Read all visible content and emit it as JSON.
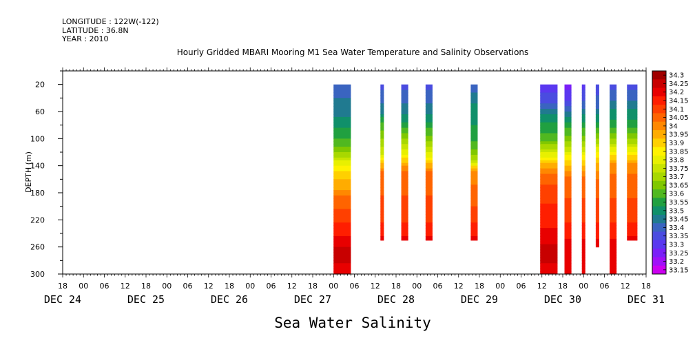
{
  "meta": {
    "longitude": "LONGITUDE : 122W(-122)",
    "latitude": "LATITUDE : 36.8N",
    "year": "YEAR : 2010"
  },
  "chart_data": {
    "type": "heatmap",
    "title": "Hourly Gridded MBARI Mooring M1 Sea Water Temperature and Salinity Observations",
    "caption": "Sea Water Salinity",
    "ylabel": "DEPTH (m)",
    "y_inverted": true,
    "ylim": [
      300,
      0
    ],
    "y_ticks": [
      20,
      60,
      100,
      140,
      180,
      220,
      260,
      300
    ],
    "x_hour_ticks": [
      "18",
      "00",
      "06",
      "12",
      "18",
      "00",
      "06",
      "12",
      "18",
      "00",
      "06",
      "12",
      "18",
      "00",
      "06",
      "12",
      "18",
      "00",
      "06",
      "12",
      "18",
      "00",
      "06",
      "12",
      "18",
      "00",
      "06",
      "12",
      "18"
    ],
    "x_day_labels": [
      {
        "label": "DEC 24",
        "hour": -6
      },
      {
        "label": "DEC 25",
        "hour": 18
      },
      {
        "label": "DEC 26",
        "hour": 42
      },
      {
        "label": "DEC 27",
        "hour": 66
      },
      {
        "label": "DEC 28",
        "hour": 90
      },
      {
        "label": "DEC 29",
        "hour": 114
      },
      {
        "label": "DEC 30",
        "hour": 138
      },
      {
        "label": "DEC 31",
        "hour": 162
      }
    ],
    "x_start": "DEC 24 18:00",
    "x_range_hours": [
      -6,
      162
    ],
    "colorbar_levels": [
      "34.3",
      "34.25",
      "34.2",
      "34.15",
      "34.1",
      "34.05",
      "34",
      "33.95",
      "33.9",
      "33.85",
      "33.8",
      "33.75",
      "33.7",
      "33.65",
      "33.6",
      "33.55",
      "33.5",
      "33.45",
      "33.4",
      "33.35",
      "33.3",
      "33.25",
      "33.2",
      "33.15"
    ],
    "colorbar_colors": [
      "#a00000",
      "#c80000",
      "#e80000",
      "#ff1e00",
      "#ff4000",
      "#ff6400",
      "#ff8800",
      "#ffac00",
      "#ffd000",
      "#fff200",
      "#e8f000",
      "#c8e400",
      "#a8d800",
      "#80c800",
      "#50b820",
      "#20a040",
      "#10906a",
      "#207a90",
      "#3a64c0",
      "#4a4ce0",
      "#5a38f0",
      "#7a20f8",
      "#a010f8",
      "#cc00f0"
    ],
    "profile_columns": [
      {
        "start_hour": 72.0,
        "end_hour": 77.0,
        "bottom_depth": 300,
        "profile": [
          [
            20,
            33.4
          ],
          [
            60,
            33.45
          ],
          [
            90,
            33.55
          ],
          [
            110,
            33.6
          ],
          [
            130,
            33.75
          ],
          [
            150,
            33.9
          ],
          [
            170,
            33.95
          ],
          [
            190,
            34.05
          ],
          [
            215,
            34.1
          ],
          [
            235,
            34.15
          ],
          [
            250,
            34.2
          ],
          [
            270,
            34.25
          ],
          [
            300,
            34.2
          ]
        ]
      },
      {
        "start_hour": 85.5,
        "end_hour": 86.5,
        "bottom_depth": 250,
        "profile": [
          [
            20,
            33.35
          ],
          [
            60,
            33.45
          ],
          [
            80,
            33.6
          ],
          [
            120,
            33.75
          ],
          [
            150,
            34.05
          ],
          [
            215,
            34.1
          ],
          [
            235,
            34.15
          ],
          [
            250,
            34.2
          ]
        ]
      },
      {
        "start_hour": 91.5,
        "end_hour": 93.5,
        "bottom_depth": 250,
        "profile": [
          [
            20,
            33.35
          ],
          [
            60,
            33.45
          ],
          [
            80,
            33.55
          ],
          [
            120,
            33.8
          ],
          [
            150,
            34.05
          ],
          [
            215,
            34.1
          ],
          [
            235,
            34.15
          ],
          [
            250,
            34.2
          ]
        ]
      },
      {
        "start_hour": 98.5,
        "end_hour": 100.5,
        "bottom_depth": 250,
        "profile": [
          [
            20,
            33.35
          ],
          [
            60,
            33.45
          ],
          [
            90,
            33.6
          ],
          [
            125,
            33.8
          ],
          [
            150,
            34.05
          ],
          [
            215,
            34.1
          ],
          [
            235,
            34.15
          ],
          [
            250,
            34.2
          ]
        ]
      },
      {
        "start_hour": 111.5,
        "end_hour": 113.5,
        "bottom_depth": 250,
        "profile": [
          [
            20,
            33.4
          ],
          [
            60,
            33.5
          ],
          [
            100,
            33.55
          ],
          [
            130,
            33.7
          ],
          [
            150,
            34.0
          ],
          [
            215,
            34.1
          ],
          [
            235,
            34.15
          ],
          [
            250,
            34.2
          ]
        ]
      },
      {
        "start_hour": 131.5,
        "end_hour": 136.5,
        "bottom_depth": 300,
        "profile": [
          [
            20,
            33.3
          ],
          [
            45,
            33.35
          ],
          [
            70,
            33.5
          ],
          [
            100,
            33.6
          ],
          [
            125,
            33.8
          ],
          [
            145,
            34.0
          ],
          [
            175,
            34.1
          ],
          [
            220,
            34.15
          ],
          [
            240,
            34.2
          ],
          [
            270,
            34.25
          ],
          [
            300,
            34.2
          ]
        ]
      },
      {
        "start_hour": 138.5,
        "end_hour": 140.5,
        "bottom_depth": 300,
        "profile": [
          [
            20,
            33.25
          ],
          [
            50,
            33.35
          ],
          [
            80,
            33.55
          ],
          [
            110,
            33.7
          ],
          [
            135,
            33.9
          ],
          [
            160,
            34.05
          ],
          [
            215,
            34.1
          ],
          [
            235,
            34.15
          ],
          [
            260,
            34.2
          ],
          [
            300,
            34.2
          ]
        ]
      },
      {
        "start_hour": 143.5,
        "end_hour": 144.5,
        "bottom_depth": 300,
        "profile": [
          [
            20,
            33.3
          ],
          [
            50,
            33.4
          ],
          [
            80,
            33.55
          ],
          [
            110,
            33.7
          ],
          [
            135,
            33.9
          ],
          [
            160,
            34.05
          ],
          [
            215,
            34.1
          ],
          [
            235,
            34.15
          ],
          [
            260,
            34.2
          ],
          [
            300,
            34.2
          ]
        ]
      },
      {
        "start_hour": 147.5,
        "end_hour": 148.5,
        "bottom_depth": 260,
        "profile": [
          [
            20,
            33.35
          ],
          [
            50,
            33.4
          ],
          [
            80,
            33.55
          ],
          [
            110,
            33.75
          ],
          [
            140,
            33.95
          ],
          [
            165,
            34.05
          ],
          [
            215,
            34.1
          ],
          [
            235,
            34.15
          ],
          [
            260,
            34.2
          ]
        ]
      },
      {
        "start_hour": 151.5,
        "end_hour": 153.5,
        "bottom_depth": 300,
        "profile": [
          [
            20,
            33.35
          ],
          [
            50,
            33.45
          ],
          [
            80,
            33.55
          ],
          [
            110,
            33.75
          ],
          [
            140,
            34.0
          ],
          [
            165,
            34.05
          ],
          [
            215,
            34.1
          ],
          [
            235,
            34.15
          ],
          [
            260,
            34.2
          ],
          [
            300,
            34.2
          ]
        ]
      },
      {
        "start_hour": 156.5,
        "end_hour": 159.5,
        "bottom_depth": 250,
        "profile": [
          [
            20,
            33.35
          ],
          [
            50,
            33.45
          ],
          [
            80,
            33.55
          ],
          [
            110,
            33.75
          ],
          [
            140,
            34.0
          ],
          [
            165,
            34.05
          ],
          [
            215,
            34.1
          ],
          [
            235,
            34.15
          ],
          [
            250,
            34.2
          ]
        ]
      }
    ]
  }
}
